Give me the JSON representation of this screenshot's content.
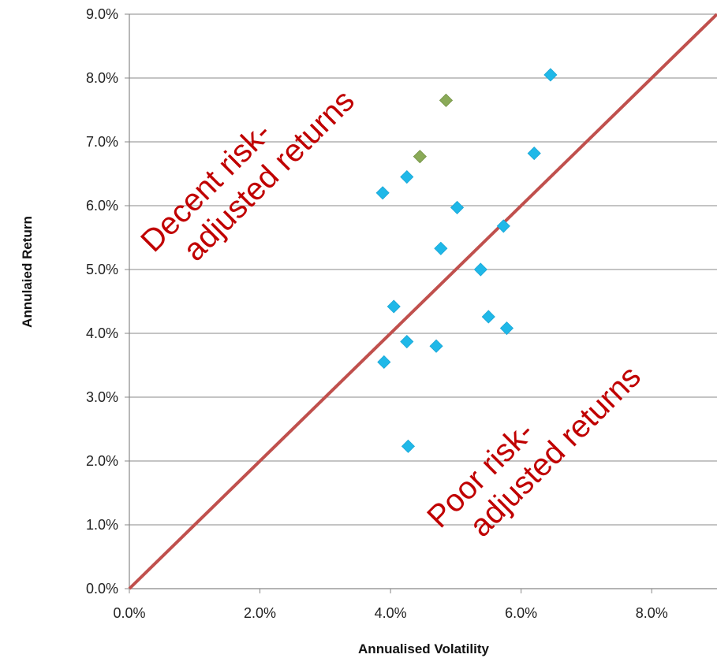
{
  "chart_data": {
    "type": "scatter",
    "xlabel": "Annualised Volatility",
    "ylabel": "Annulaied Return",
    "xlim": [
      0,
      9
    ],
    "ylim": [
      0,
      9
    ],
    "x_ticks": [
      "0.0%",
      "2.0%",
      "4.0%",
      "6.0%",
      "8.0%"
    ],
    "y_ticks": [
      "0.0%",
      "1.0%",
      "2.0%",
      "3.0%",
      "4.0%",
      "5.0%",
      "6.0%",
      "7.0%",
      "8.0%",
      "9.0%"
    ],
    "grid": "horizontal",
    "series": [
      {
        "marker": "diamond",
        "color": "#1fb8e8",
        "points": [
          {
            "x": 6.45,
            "y": 8.05
          },
          {
            "x": 6.2,
            "y": 6.82
          },
          {
            "x": 4.25,
            "y": 6.45
          },
          {
            "x": 3.88,
            "y": 6.2
          },
          {
            "x": 5.02,
            "y": 5.97
          },
          {
            "x": 5.73,
            "y": 5.68
          },
          {
            "x": 4.77,
            "y": 5.33
          },
          {
            "x": 5.38,
            "y": 5.0
          },
          {
            "x": 4.05,
            "y": 4.42
          },
          {
            "x": 5.5,
            "y": 4.26
          },
          {
            "x": 5.78,
            "y": 4.08
          },
          {
            "x": 4.25,
            "y": 3.87
          },
          {
            "x": 4.7,
            "y": 3.8
          },
          {
            "x": 3.9,
            "y": 3.55
          },
          {
            "x": 4.27,
            "y": 2.23
          }
        ]
      },
      {
        "marker": "diamond",
        "color": "#8aaa58",
        "points": [
          {
            "x": 4.85,
            "y": 7.65
          },
          {
            "x": 4.45,
            "y": 6.77
          }
        ]
      }
    ],
    "reference_line": {
      "from": [
        0,
        0
      ],
      "to": [
        9,
        9
      ],
      "color": "#c0504d"
    },
    "annotations": [
      {
        "lines": [
          "Decent risk-",
          "adjusted returns"
        ],
        "color": "#c00000"
      },
      {
        "lines": [
          "Poor risk-",
          "adjusted returns"
        ],
        "color": "#c00000"
      }
    ]
  }
}
